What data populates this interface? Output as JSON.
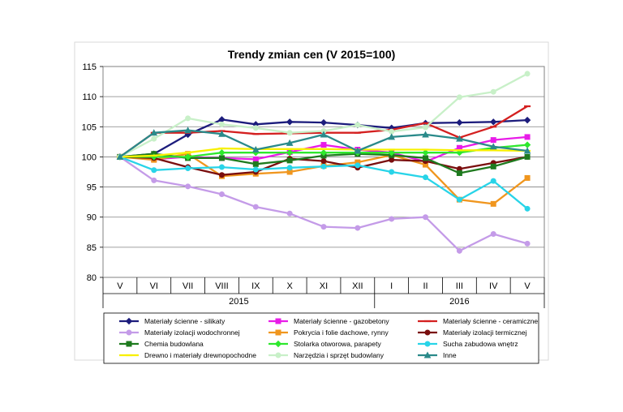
{
  "chart_data": {
    "type": "line",
    "title": "Trendy zmian cen (V 2015=100)",
    "xlabel": "",
    "ylabel": "",
    "ylim": [
      80,
      115
    ],
    "yticks": [
      80,
      85,
      90,
      95,
      100,
      105,
      110,
      115
    ],
    "grid": true,
    "legend_position": "bottom",
    "categories": [
      "V",
      "VI",
      "VII",
      "VIII",
      "IX",
      "X",
      "XI",
      "XII",
      "I",
      "II",
      "III",
      "IV",
      "V"
    ],
    "year_groups": [
      {
        "label": "2015",
        "from": 0,
        "to": 7
      },
      {
        "label": "2016",
        "from": 8,
        "to": 12
      }
    ],
    "series": [
      {
        "name": "Materiały ścienne - silikaty",
        "color": "#1c1c7c",
        "marker": "diamond",
        "values": [
          100,
          100.5,
          103.7,
          106.2,
          105.4,
          105.8,
          105.7,
          105.3,
          104.8,
          105.6,
          105.7,
          105.8,
          106.1
        ]
      },
      {
        "name": "Materiały ścienne - gazobetony",
        "color": "#e81ce8",
        "marker": "square",
        "values": [
          100,
          99.6,
          100,
          99.8,
          99.6,
          100.8,
          102.0,
          101.2,
          100.7,
          99.2,
          101.5,
          102.8,
          103.3
        ]
      },
      {
        "name": "Materiały ścienne - ceramiczne",
        "color": "#d42020",
        "marker": "dash",
        "values": [
          100,
          104.0,
          104.0,
          104.3,
          103.8,
          103.9,
          104.0,
          104.0,
          104.5,
          105.6,
          103.2,
          105.0,
          108.4
        ]
      },
      {
        "name": "Materiały izolacji wodochronnej",
        "color": "#c49be8",
        "marker": "circle",
        "values": [
          100,
          96.1,
          95.1,
          93.8,
          91.7,
          90.6,
          88.4,
          88.2,
          89.7,
          90.0,
          84.4,
          87.2,
          85.6
        ]
      },
      {
        "name": "Pokrycia i folie dachowe, rynny",
        "color": "#f0961e",
        "marker": "square",
        "values": [
          100,
          99.5,
          100.5,
          96.8,
          97.2,
          97.5,
          98.5,
          99.1,
          100.3,
          98.7,
          92.9,
          92.2,
          96.5
        ]
      },
      {
        "name": "Materiały izolacji termicznej",
        "color": "#7a0e0e",
        "marker": "circle",
        "values": [
          100,
          99.8,
          98.3,
          97.0,
          97.5,
          99.7,
          99.3,
          98.2,
          99.5,
          99.3,
          98.0,
          99.0,
          100.0
        ]
      },
      {
        "name": "Chemia budowlana",
        "color": "#1e7a1e",
        "marker": "square",
        "values": [
          100,
          100.5,
          99.8,
          99.8,
          98.8,
          99.4,
          100.2,
          100.5,
          100.3,
          99.8,
          97.3,
          98.4,
          100.0
        ]
      },
      {
        "name": "Stolarka otworowa, parapety",
        "color": "#2ee82e",
        "marker": "diamond",
        "values": [
          100,
          100.0,
          100.0,
          100.7,
          100.7,
          100.7,
          100.7,
          100.7,
          100.7,
          100.7,
          100.7,
          101.5,
          102.0
        ]
      },
      {
        "name": "Sucha zabudowa wnętrz",
        "color": "#28d4e8",
        "marker": "circle",
        "values": [
          100,
          97.8,
          98.1,
          98.3,
          97.9,
          98.2,
          98.4,
          98.6,
          97.5,
          96.6,
          92.9,
          96.0,
          91.4
        ]
      },
      {
        "name": "Drewno i materiały drewnopochodne",
        "color": "#f8f000",
        "marker": "dash",
        "values": [
          100,
          100.2,
          100.7,
          101.4,
          101.3,
          101.3,
          101.3,
          101.2,
          101.2,
          101.2,
          101.1,
          101.1,
          101.0
        ]
      },
      {
        "name": "Narzędzia i sprzęt budowlany",
        "color": "#c8f0c8",
        "marker": "circle",
        "values": [
          100,
          103.0,
          106.4,
          105.4,
          104.8,
          104.0,
          104.3,
          105.3,
          104.2,
          104.9,
          109.9,
          110.8,
          113.8
        ]
      },
      {
        "name": "Inne",
        "color": "#2a8a8a",
        "marker": "triangle",
        "values": [
          100,
          104.0,
          104.4,
          103.8,
          101.2,
          102.3,
          103.7,
          101.0,
          103.3,
          103.7,
          103.0,
          101.7,
          101.0
        ]
      }
    ]
  }
}
